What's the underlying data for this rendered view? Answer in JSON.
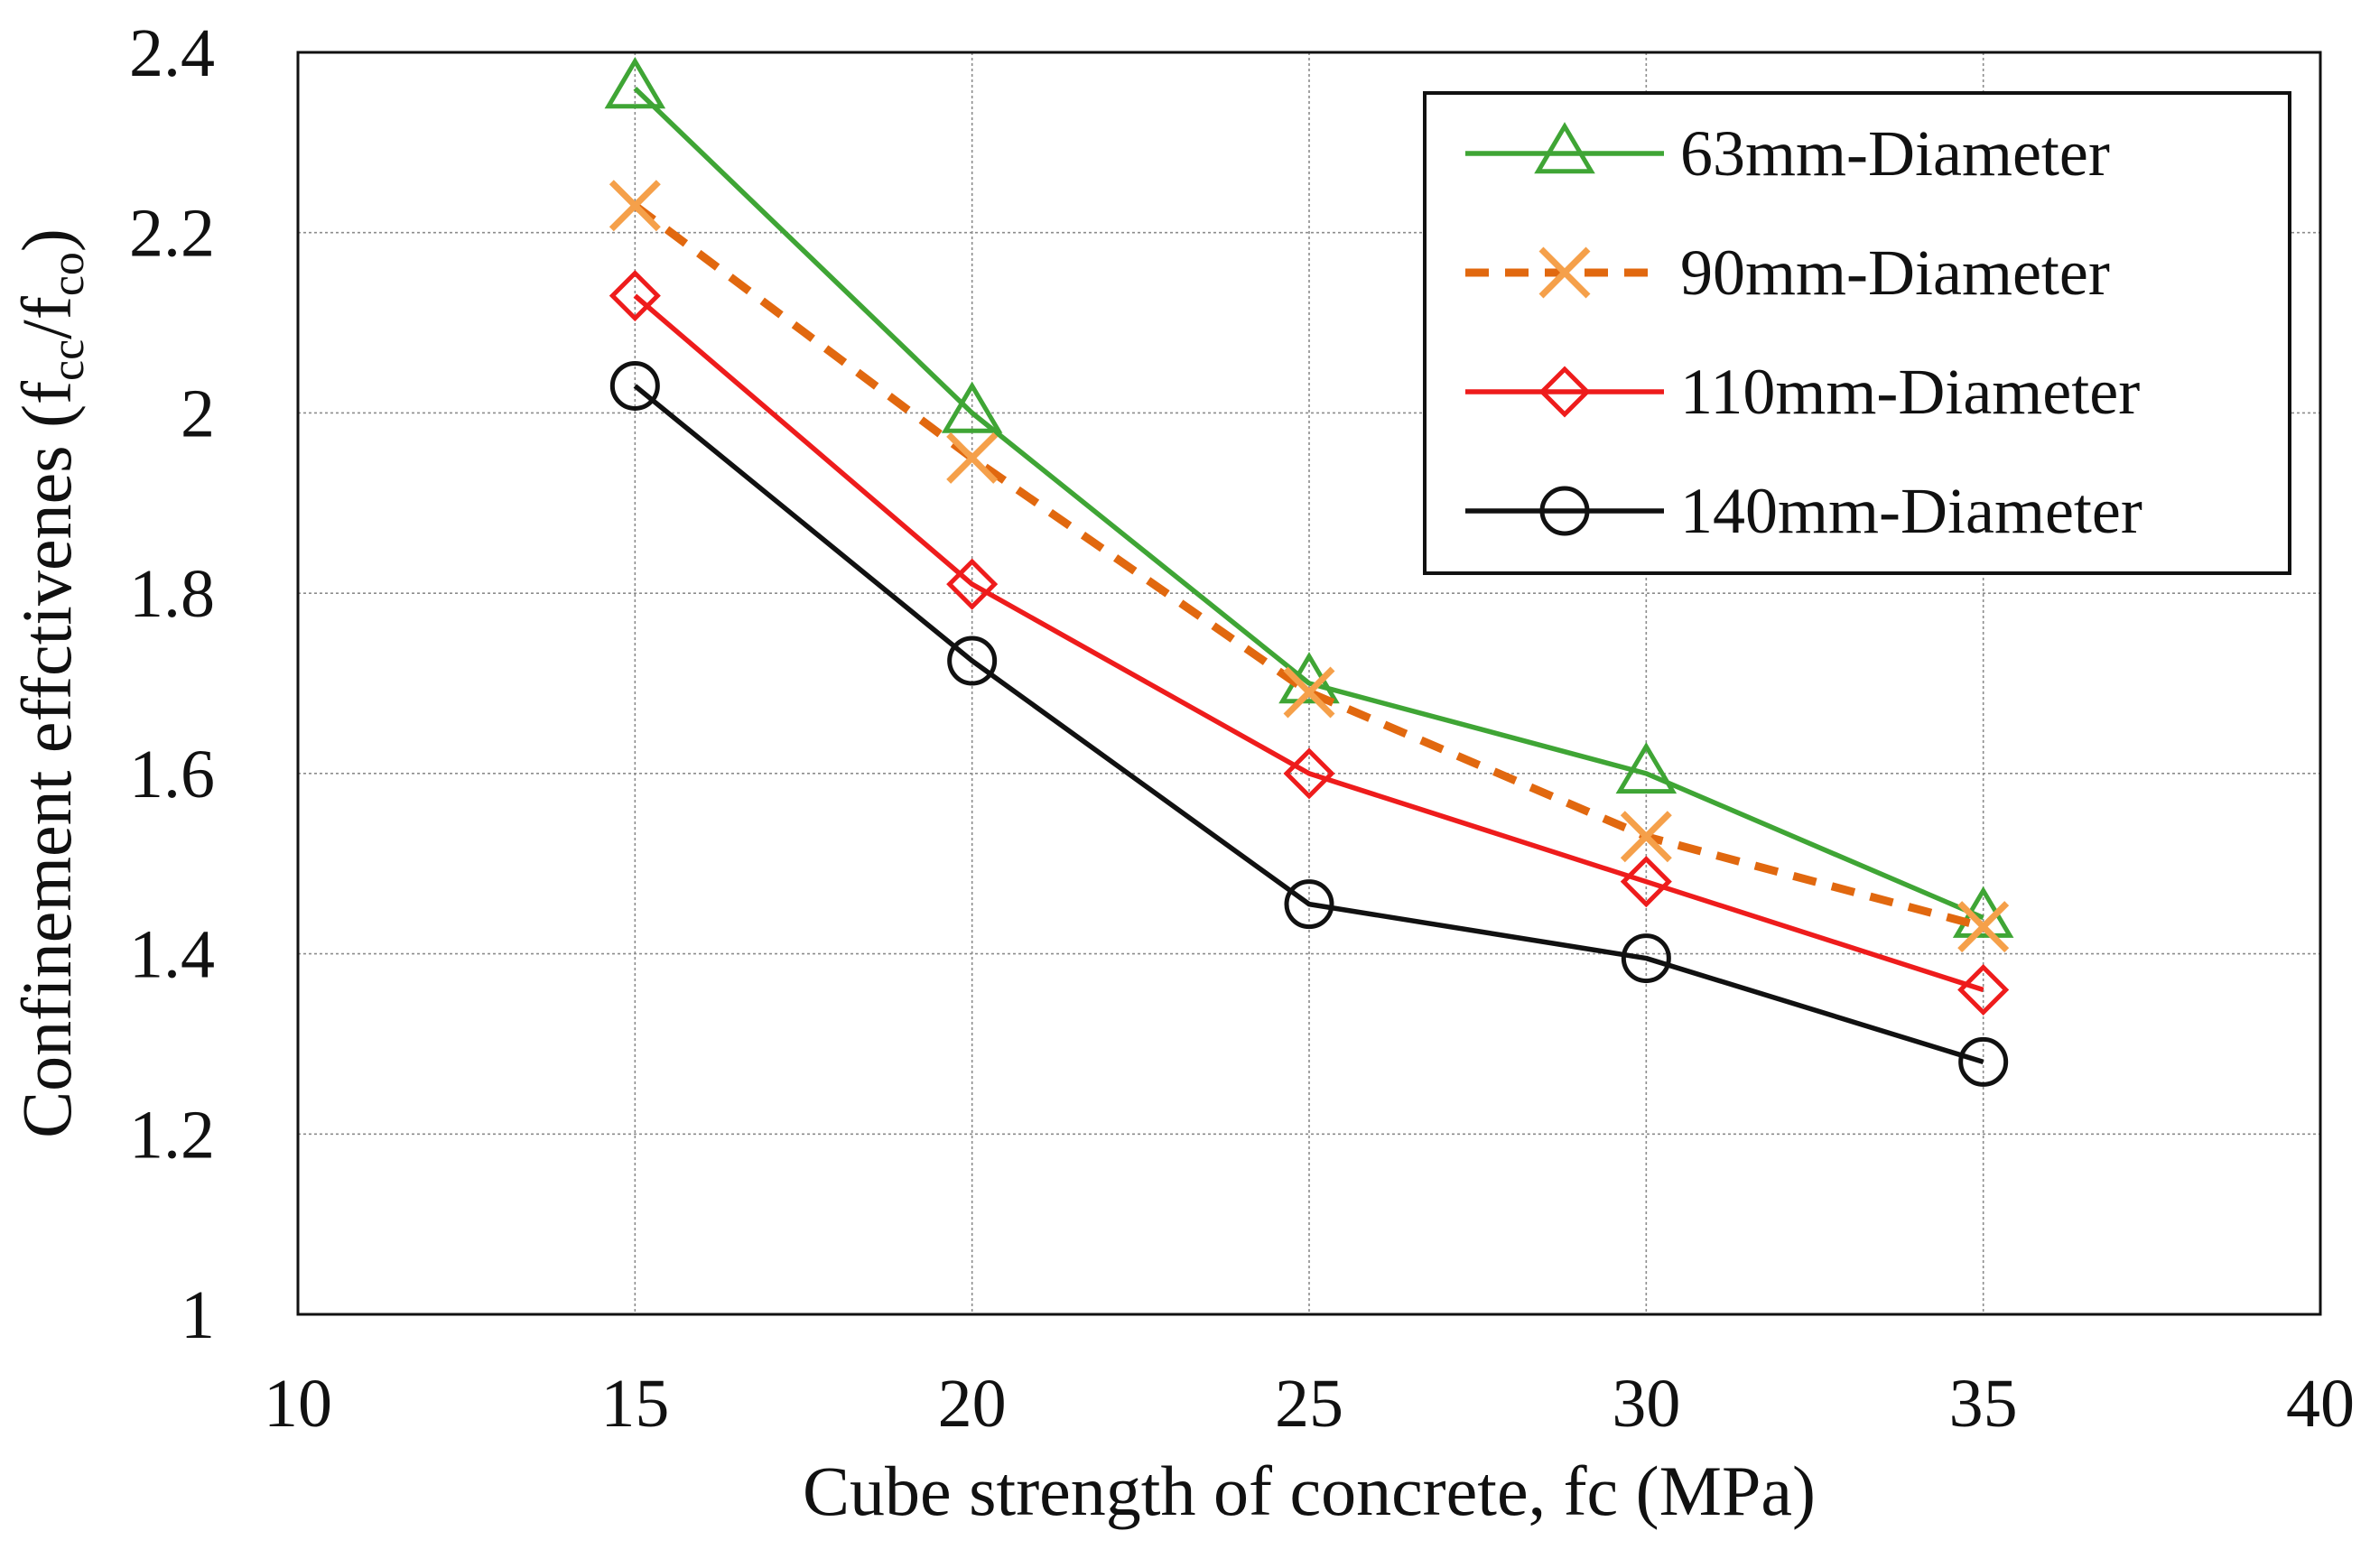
{
  "chart_data": {
    "type": "line",
    "title": "",
    "xlabel": "Cube strength of concrete, fc (MPa)",
    "ylabel": {
      "main": "Confinement effctivenes (f",
      "sub1": "cc",
      "mid": "/f",
      "sub2": "co",
      "end": ")"
    },
    "xlim": [
      10,
      40
    ],
    "ylim": [
      1,
      2.4
    ],
    "x_ticks": [
      10,
      15,
      20,
      25,
      30,
      35,
      40
    ],
    "x_tick_labels": [
      "10",
      "15",
      "20",
      "25",
      "30",
      "35",
      "40"
    ],
    "y_ticks": [
      1,
      1.2,
      1.4,
      1.6,
      1.8,
      2,
      2.2,
      2.4
    ],
    "y_tick_labels": [
      "1",
      "1.2",
      "1.4",
      "1.6",
      "1.8",
      "2",
      "2.2",
      "2.4"
    ],
    "grid": true,
    "legend_position": "top-right",
    "x": [
      15,
      20,
      25,
      30,
      35
    ],
    "series": [
      {
        "name": "63mm-Diameter",
        "values": [
          2.36,
          2.0,
          1.7,
          1.6,
          1.44
        ],
        "color": "#3fa535",
        "marker": "triangle",
        "dashed": false
      },
      {
        "name": "90mm-Diameter",
        "values": [
          2.23,
          1.95,
          1.69,
          1.53,
          1.43
        ],
        "color": "#e1680f",
        "marker_color": "#f5a04a",
        "marker": "x",
        "dashed": true
      },
      {
        "name": "110mm-Diameter",
        "values": [
          2.13,
          1.81,
          1.6,
          1.48,
          1.36
        ],
        "color": "#ee1c1c",
        "marker": "diamond",
        "dashed": false
      },
      {
        "name": "140mm-Diameter",
        "values": [
          2.03,
          1.725,
          1.455,
          1.395,
          1.28
        ],
        "color": "#111111",
        "marker": "circle",
        "dashed": false
      }
    ]
  }
}
